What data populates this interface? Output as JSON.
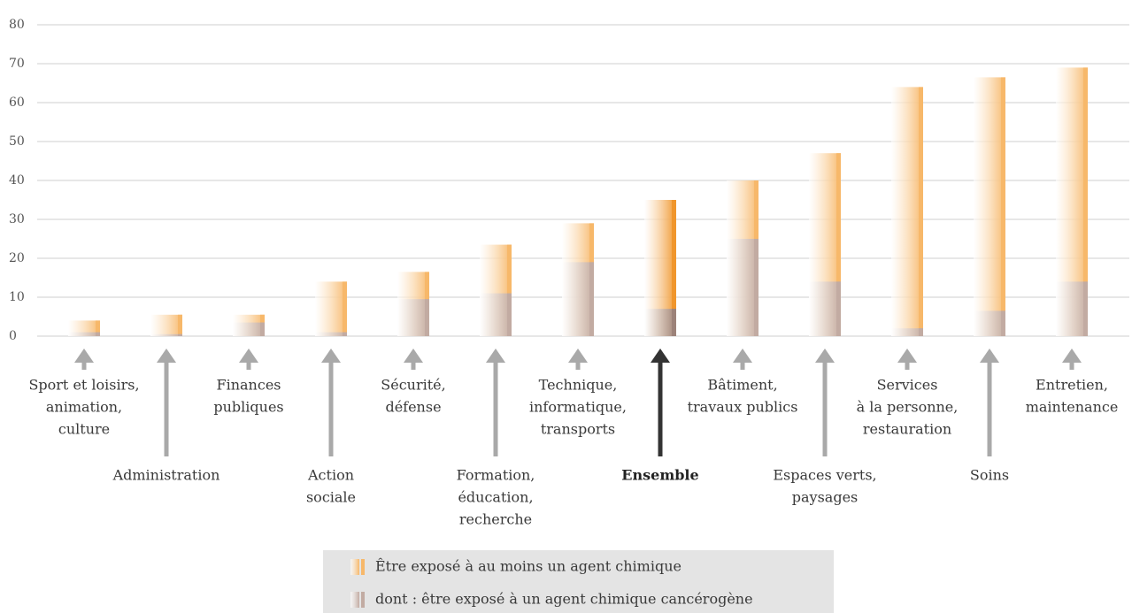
{
  "chart_data": {
    "type": "bar",
    "categories": [
      [
        "Sport et loisirs,",
        "animation,",
        "culture"
      ],
      [
        "Administration"
      ],
      [
        "Finances",
        "publiques"
      ],
      [
        "Action",
        "sociale"
      ],
      [
        "Sécurité,",
        "défense"
      ],
      [
        "Formation,",
        "éducation,",
        "recherche"
      ],
      [
        "Technique,",
        "informatique,",
        "transports"
      ],
      [
        "Ensemble"
      ],
      [
        "Bâtiment,",
        "travaux publics"
      ],
      [
        "Espaces verts,",
        "paysages"
      ],
      [
        "Services",
        "à la personne,",
        "restauration"
      ],
      [
        "Soins"
      ],
      [
        "Entretien,",
        "maintenance"
      ]
    ],
    "series": [
      {
        "name": "Être exposé à au moins un agent chimique",
        "color": "#f7b86a",
        "values": [
          4,
          5.5,
          5.5,
          14,
          16.5,
          23.5,
          29,
          35,
          40,
          47,
          64,
          66.5,
          69
        ]
      },
      {
        "name": "dont : être exposé à un agent chimique cancérogène",
        "color": "#c2aba2",
        "values": [
          1,
          0.5,
          3.5,
          1,
          9.5,
          11,
          19,
          7,
          25,
          14,
          2,
          6.5,
          14
        ]
      }
    ],
    "highlight_category": 7,
    "highlight_colors": [
      "#f0962c",
      "#9c8279"
    ],
    "ylim": [
      0,
      80
    ],
    "yticks": [
      0,
      10,
      20,
      30,
      40,
      50,
      60,
      70,
      80
    ],
    "grid": true
  }
}
